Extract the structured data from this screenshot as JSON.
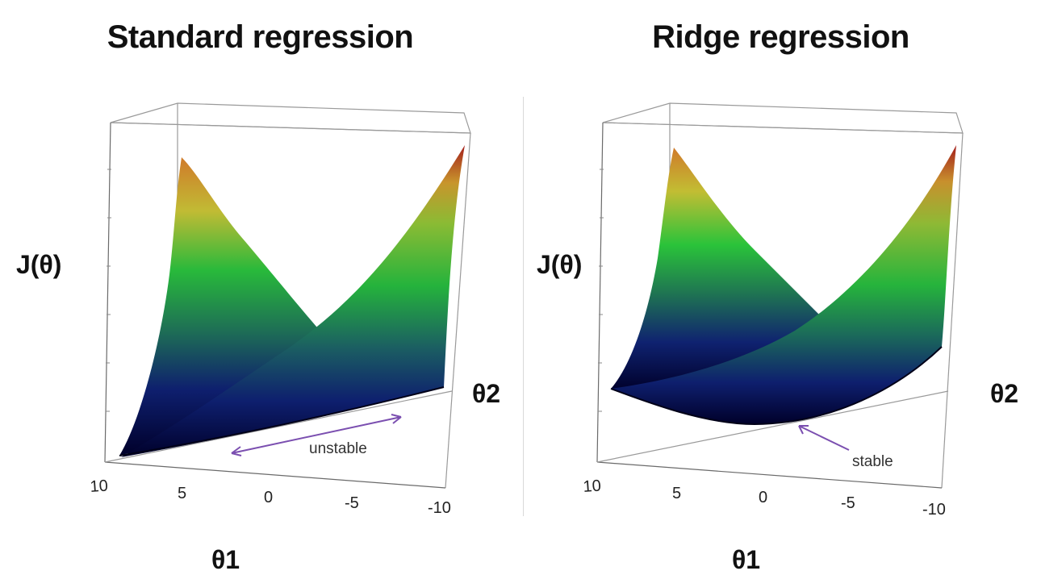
{
  "chart_data": [
    {
      "type": "surface",
      "title": "Standard regression",
      "zlabel": "J(θ)",
      "xlabel": "θ1",
      "ylabel": "θ2",
      "x_ticks": [
        "10",
        "5",
        "0",
        "-5",
        "-10"
      ],
      "annotation": "unstable",
      "colormap": [
        "#00003a",
        "#1c2f8a",
        "#2ab53a",
        "#d0c23a",
        "#a11b1b"
      ]
    },
    {
      "type": "surface",
      "title": "Ridge regression",
      "zlabel": "J(θ)",
      "xlabel": "θ1",
      "ylabel": "θ2",
      "x_ticks": [
        "10",
        "5",
        "0",
        "-5",
        "-10"
      ],
      "annotation": "stable",
      "colormap": [
        "#00003a",
        "#1c2f8a",
        "#2ab53a",
        "#d0c23a",
        "#a11b1b"
      ]
    }
  ]
}
